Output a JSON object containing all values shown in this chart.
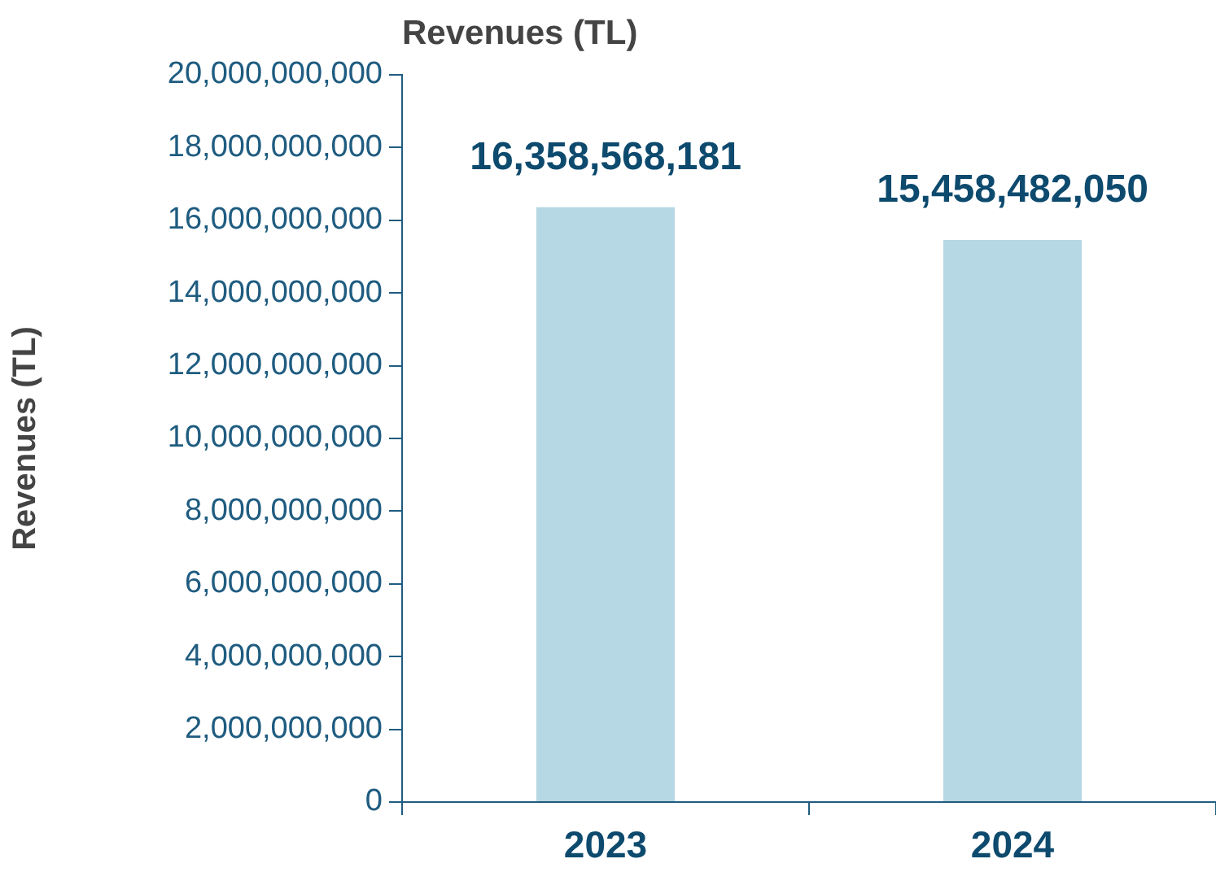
{
  "chart_data": {
    "type": "bar",
    "title": "Revenues (TL)",
    "ylabel": "Revenues (TL)",
    "categories": [
      "2023",
      "2024"
    ],
    "values": [
      16358568181,
      15458482050
    ],
    "color": "#b6d7e4",
    "value_labels": [
      "16,358,568,181",
      "15,458,482,050"
    ],
    "ylim": [
      0,
      20000000000
    ],
    "yticks": [
      0,
      {
        "value": 2000000000,
        "label": "2,000,000,000"
      },
      {
        "value": 4000000000,
        "label": "4,000,000,000"
      },
      {
        "value": 6000000000,
        "label": "6,000,000,000"
      },
      {
        "value": 8000000000,
        "label": "8,000,000,000"
      },
      {
        "value": 10000000000,
        "label": "10,000,000,000"
      },
      {
        "value": 12000000000,
        "label": "12,000,000,000"
      },
      {
        "value": 14000000000,
        "label": "14,000,000,000"
      },
      {
        "value": 16000000000,
        "label": "16,000,000,000"
      },
      {
        "value": 18000000000,
        "label": "18,000,000,000"
      },
      {
        "value": 20000000000,
        "label": "20,000,000,000"
      }
    ],
    "grid": false,
    "legend": false
  }
}
